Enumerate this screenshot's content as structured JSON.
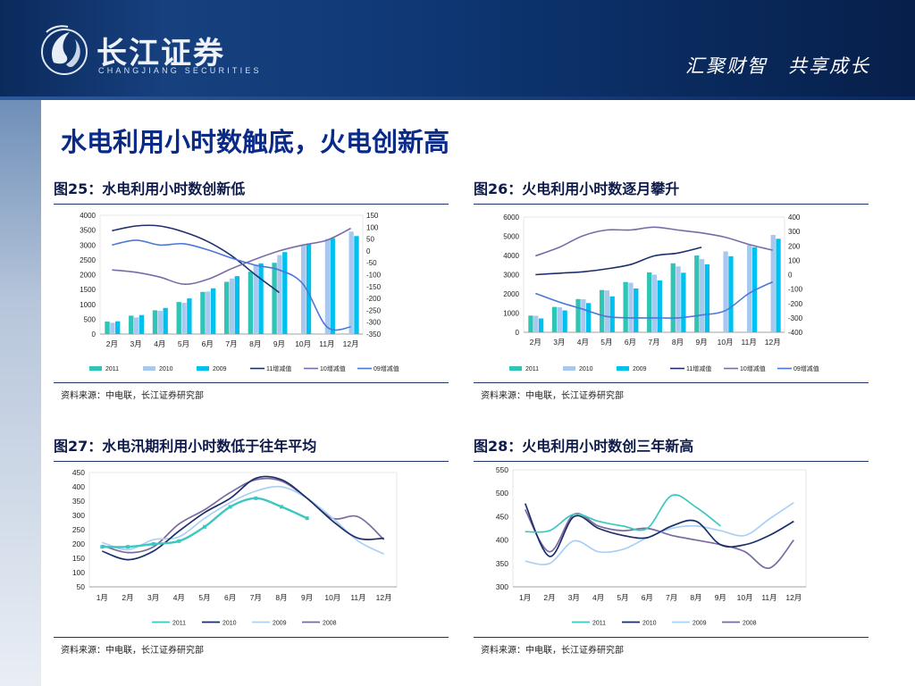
{
  "header": {
    "logo_name": "长江证券",
    "logo_sub": "CHANGJIANG SECURITIES",
    "slogan": "汇聚财智　共享成长"
  },
  "page_title": "水电利用小时数触底，火电创新高",
  "colors": {
    "s2011": "#2ec4b6",
    "s2010": "#a8c8f0",
    "s2009": "#00c0f0",
    "l11": "#1f2f6e",
    "l10": "#7b6aa8",
    "l09": "#4a78d8",
    "y2011": "#3cc8c0",
    "y2010": "#1a2e6a",
    "y2009": "#a9d0f5",
    "y2008": "#7a6aa0"
  },
  "figures": [
    {
      "title": "图25：水电利用小时数创新低",
      "source": "资料来源：中电联，长江证券研究部"
    },
    {
      "title": "图26：火电利用小时数逐月攀升",
      "source": "资料来源：中电联，长江证券研究部"
    },
    {
      "title": "图27：水电汛期利用小时数低于往年平均",
      "source": "资料来源：中电联，长江证券研究部"
    },
    {
      "title": "图28：火电利用小时数创三年新高",
      "source": "资料来源：中电联，长江证券研究部"
    }
  ],
  "chart_data": [
    {
      "type": "bar",
      "categories": [
        "2月",
        "3月",
        "4月",
        "5月",
        "6月",
        "7月",
        "8月",
        "9月",
        "10月",
        "11月",
        "12月"
      ],
      "ylim": [
        0,
        4000
      ],
      "yticks": [
        "0",
        "500",
        "1000",
        "1500",
        "2000",
        "2500",
        "3000",
        "3500",
        "4000"
      ],
      "y2lim": [
        -350,
        150
      ],
      "y2ticks": [
        "-350",
        "-300",
        "-250",
        "-200",
        "-150",
        "-100",
        "-50",
        "0",
        "50",
        "100",
        "150"
      ],
      "series": [
        {
          "name": "2011",
          "kind": "bar",
          "values": [
            420,
            620,
            800,
            1080,
            1420,
            1760,
            2100,
            2400,
            null,
            null,
            null
          ]
        },
        {
          "name": "2010",
          "kind": "bar",
          "values": [
            380,
            560,
            780,
            1050,
            1430,
            1870,
            2330,
            2660,
            3000,
            3200,
            3450
          ]
        },
        {
          "name": "2009",
          "kind": "bar",
          "values": [
            430,
            640,
            880,
            1200,
            1540,
            1950,
            2380,
            2760,
            3050,
            3230,
            3300
          ]
        },
        {
          "name": "11增减值",
          "kind": "line",
          "axis": "y2",
          "values": [
            85,
            105,
            105,
            80,
            40,
            -20,
            -100,
            -175,
            null,
            null,
            null
          ]
        },
        {
          "name": "10增减值",
          "kind": "line",
          "axis": "y2",
          "values": [
            -80,
            -90,
            -110,
            -140,
            -120,
            -75,
            -35,
            0,
            25,
            45,
            95
          ]
        },
        {
          "name": "09增减值",
          "kind": "line",
          "axis": "y2",
          "values": [
            25,
            45,
            25,
            30,
            5,
            -30,
            -60,
            -80,
            -140,
            -320,
            -320
          ]
        }
      ]
    },
    {
      "type": "bar",
      "categories": [
        "2月",
        "3月",
        "4月",
        "5月",
        "6月",
        "7月",
        "8月",
        "9月",
        "10月",
        "11月",
        "12月"
      ],
      "ylim": [
        0,
        6000
      ],
      "yticks": [
        "0",
        "1000",
        "2000",
        "3000",
        "4000",
        "5000",
        "6000"
      ],
      "y2lim": [
        -400,
        400
      ],
      "y2ticks": [
        "-400",
        "-300",
        "-200",
        "-100",
        "0",
        "100",
        "200",
        "300",
        "400"
      ],
      "series": [
        {
          "name": "2011",
          "kind": "bar",
          "values": [
            870,
            1320,
            1730,
            2200,
            2620,
            3120,
            3590,
            4000,
            null,
            null,
            null
          ]
        },
        {
          "name": "2010",
          "kind": "bar",
          "values": [
            860,
            1300,
            1720,
            2180,
            2580,
            3000,
            3430,
            3810,
            4210,
            4540,
            5070
          ]
        },
        {
          "name": "2009",
          "kind": "bar",
          "values": [
            720,
            1140,
            1520,
            1870,
            2280,
            2700,
            3100,
            3540,
            3960,
            4430,
            4870
          ]
        },
        {
          "name": "11增减值",
          "kind": "line",
          "axis": "y2",
          "values": [
            0,
            10,
            20,
            40,
            70,
            130,
            150,
            190,
            null,
            null,
            null
          ]
        },
        {
          "name": "10增减值",
          "kind": "line",
          "axis": "y2",
          "values": [
            130,
            190,
            270,
            310,
            310,
            330,
            310,
            290,
            260,
            210,
            170
          ]
        },
        {
          "name": "09增减值",
          "kind": "line",
          "axis": "y2",
          "values": [
            -130,
            -190,
            -240,
            -290,
            -300,
            -300,
            -300,
            -280,
            -250,
            -130,
            -50
          ]
        }
      ]
    },
    {
      "type": "line",
      "categories": [
        "1月",
        "2月",
        "3月",
        "4月",
        "5月",
        "6月",
        "7月",
        "8月",
        "9月",
        "10月",
        "11月",
        "12月"
      ],
      "ylim": [
        50,
        450
      ],
      "yticks": [
        "50",
        "100",
        "150",
        "200",
        "250",
        "300",
        "350",
        "400",
        "450"
      ],
      "series": [
        {
          "name": "2011",
          "values": [
            190,
            190,
            200,
            210,
            260,
            330,
            360,
            330,
            290,
            null,
            null,
            null
          ]
        },
        {
          "name": "2010",
          "values": [
            175,
            145,
            175,
            245,
            310,
            360,
            430,
            425,
            360,
            280,
            220,
            220
          ]
        },
        {
          "name": "2009",
          "values": [
            205,
            180,
            215,
            225,
            290,
            345,
            385,
            400,
            360,
            290,
            210,
            165
          ]
        },
        {
          "name": "2008",
          "values": [
            195,
            170,
            190,
            270,
            320,
            380,
            425,
            420,
            360,
            290,
            295,
            215
          ]
        }
      ]
    },
    {
      "type": "line",
      "categories": [
        "1月",
        "2月",
        "3月",
        "4月",
        "5月",
        "6月",
        "7月",
        "8月",
        "9月",
        "10月",
        "11月",
        "12月"
      ],
      "ylim": [
        300,
        550
      ],
      "yticks": [
        "300",
        "350",
        "400",
        "450",
        "500",
        "550"
      ],
      "series": [
        {
          "name": "2011",
          "values": [
            418,
            420,
            455,
            440,
            430,
            425,
            495,
            470,
            430,
            null,
            null,
            null
          ]
        },
        {
          "name": "2010",
          "values": [
            478,
            365,
            450,
            425,
            410,
            405,
            430,
            440,
            390,
            390,
            410,
            440
          ]
        },
        {
          "name": "2009",
          "values": [
            355,
            350,
            398,
            375,
            380,
            405,
            425,
            430,
            420,
            410,
            445,
            480
          ]
        },
        {
          "name": "2008",
          "values": [
            465,
            375,
            455,
            430,
            420,
            425,
            410,
            400,
            390,
            375,
            340,
            400
          ]
        }
      ]
    }
  ]
}
